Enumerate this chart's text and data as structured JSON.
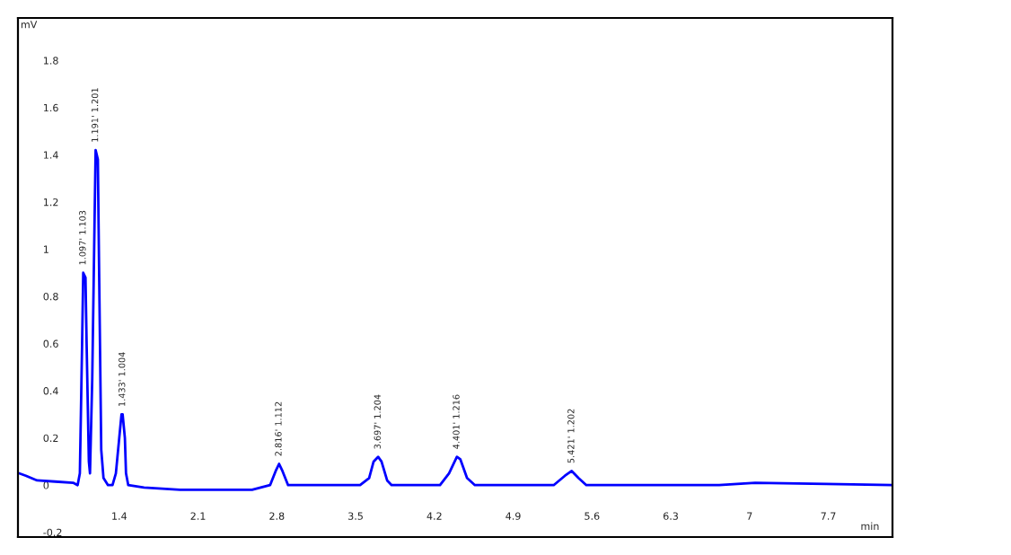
{
  "chart_data": {
    "type": "line",
    "ylabel": "mV",
    "xlabel": "min",
    "xlim": [
      0.5,
      8.27
    ],
    "xticks": [
      1.4,
      2.1,
      2.8,
      3.5,
      4.2,
      4.9,
      5.6,
      6.3,
      7,
      7.7
    ],
    "ylim": [
      -0.22,
      1.98
    ],
    "yticks": [
      -0.2,
      0,
      0.2,
      0.4,
      0.6,
      0.8,
      1,
      1.2,
      1.4,
      1.6,
      1.8
    ],
    "grid": false,
    "legend": false,
    "marker": "none",
    "line_style": "solid",
    "series": [
      {
        "color": "#0000ff",
        "x": [
          0.51,
          0.57,
          0.67,
          0.83,
          0.99,
          1.03,
          1.05,
          1.07,
          1.08,
          1.1,
          1.11,
          1.13,
          1.14,
          1.16,
          1.18,
          1.19,
          1.21,
          1.22,
          1.24,
          1.26,
          1.3,
          1.34,
          1.37,
          1.4,
          1.42,
          1.43,
          1.45,
          1.46,
          1.48,
          1.62,
          1.94,
          2.58,
          2.74,
          2.79,
          2.82,
          2.85,
          2.9,
          3.54,
          3.62,
          3.66,
          3.7,
          3.73,
          3.78,
          3.82,
          4.25,
          4.33,
          4.4,
          4.43,
          4.49,
          4.56,
          5.13,
          5.26,
          5.36,
          5.42,
          5.48,
          5.55,
          6.73,
          7.05,
          7.68,
          8.27
        ],
        "values": [
          0.05,
          0.04,
          0.02,
          0.015,
          0.01,
          0.0,
          0.05,
          0.6,
          0.9,
          0.88,
          0.6,
          0.1,
          0.05,
          0.45,
          1.1,
          1.42,
          1.38,
          0.95,
          0.15,
          0.03,
          0.0,
          0.0,
          0.05,
          0.2,
          0.3,
          0.3,
          0.2,
          0.05,
          0.0,
          -0.01,
          -0.02,
          -0.02,
          0.0,
          0.06,
          0.09,
          0.06,
          0.0,
          0.0,
          0.03,
          0.1,
          0.12,
          0.1,
          0.02,
          0.0,
          0.0,
          0.05,
          0.12,
          0.11,
          0.03,
          0.0,
          0.0,
          0.0,
          0.04,
          0.06,
          0.03,
          0.0,
          0.0,
          0.01,
          0.005,
          0.0
        ]
      }
    ],
    "annotations": [
      {
        "text": "1.097' 1.103",
        "x": 1.08,
        "y": 0.9
      },
      {
        "text": "1.191' 1.201",
        "x": 1.19,
        "y": 1.42
      },
      {
        "text": "1.433' 1.004",
        "x": 1.43,
        "y": 0.3
      },
      {
        "text": "2.816' 1.112",
        "x": 2.82,
        "y": 0.09
      },
      {
        "text": "3.697' 1.204",
        "x": 3.7,
        "y": 0.12
      },
      {
        "text": "4.401' 1.216",
        "x": 4.4,
        "y": 0.12
      },
      {
        "text": "5.421' 1.202",
        "x": 5.42,
        "y": 0.06
      }
    ]
  }
}
